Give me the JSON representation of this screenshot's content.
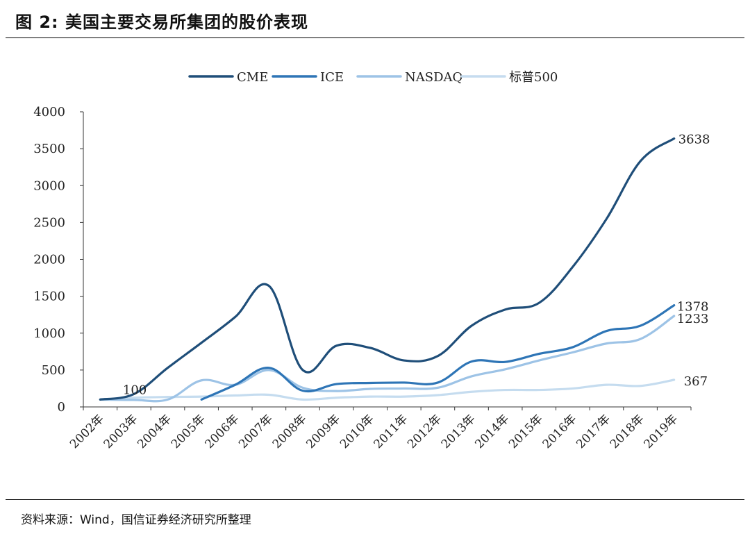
{
  "figure": {
    "title": "图 2:  美国主要交易所集团的股价表现",
    "source": "资料来源：Wind，国信证券经济研究所整理"
  },
  "chart_data": {
    "type": "line",
    "title": "",
    "xlabel": "",
    "ylabel": "",
    "ylim": [
      0,
      4000
    ],
    "yticks": [
      "0",
      "500",
      "1000",
      "1500",
      "2000",
      "2500",
      "3000",
      "3500",
      "4000"
    ],
    "grid": false,
    "legend_position": "top-center",
    "categories": [
      "2002年",
      "2003年",
      "2004年",
      "2005年",
      "2006年",
      "2007年",
      "2008年",
      "2009年",
      "2010年",
      "2011年",
      "2012年",
      "2013年",
      "2014年",
      "2015年",
      "2016年",
      "2017年",
      "2018年",
      "2019年"
    ],
    "series": [
      {
        "name": "CME",
        "color": "#1f4e79",
        "values": [
          100,
          175,
          530,
          870,
          1220,
          1640,
          500,
          830,
          800,
          630,
          690,
          1100,
          1320,
          1410,
          1900,
          2550,
          3330,
          3638
        ]
      },
      {
        "name": "ICE",
        "color": "#2e75b6",
        "values": [
          null,
          null,
          null,
          100,
          300,
          530,
          220,
          310,
          325,
          330,
          330,
          615,
          610,
          720,
          810,
          1030,
          1100,
          1378
        ]
      },
      {
        "name": "NASDAQ",
        "color": "#9dc3e6",
        "values": [
          100,
          95,
          100,
          360,
          300,
          500,
          260,
          215,
          245,
          250,
          260,
          415,
          510,
          630,
          740,
          860,
          920,
          1233
        ]
      },
      {
        "name": "标普500",
        "color": "#c5dcef",
        "values": [
          100,
          125,
          135,
          140,
          155,
          165,
          100,
          125,
          140,
          140,
          160,
          205,
          230,
          230,
          250,
          300,
          285,
          367
        ]
      }
    ],
    "annotations": [
      {
        "text": "100",
        "series": "CME",
        "category": "2003年"
      },
      {
        "text": "3638",
        "series": "CME",
        "category": "2019年"
      },
      {
        "text": "1378",
        "series": "ICE",
        "category": "2019年"
      },
      {
        "text": "1233",
        "series": "NASDAQ",
        "category": "2019年"
      },
      {
        "text": "367",
        "series": "标普500",
        "category": "2019年"
      }
    ]
  }
}
